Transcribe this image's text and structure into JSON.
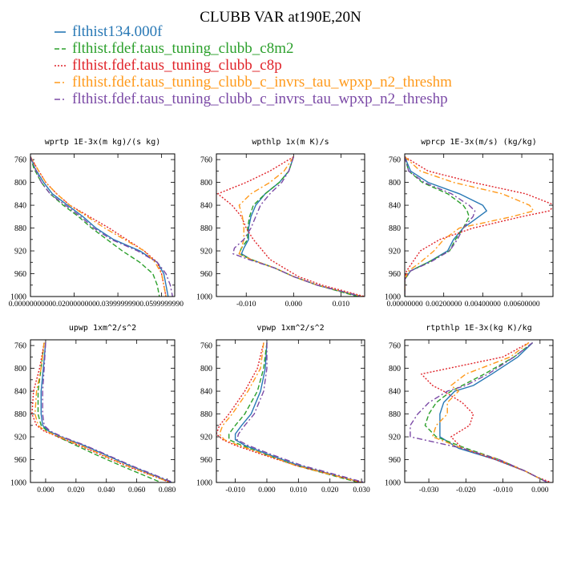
{
  "title": "CLUBB VAR at190E,20N",
  "legend": [
    {
      "label": "flthist134.000f",
      "color": "#2878b5",
      "style": "solid"
    },
    {
      "label": "flthist.fdef.taus_tuning_clubb_c8m2",
      "color": "#2ca02c",
      "style": "dashed"
    },
    {
      "label": "flthist.fdef.taus_tuning_clubb_c8p",
      "color": "#e0242a",
      "style": "dotted"
    },
    {
      "label": "flthist.fdef.taus_tuning_clubb_c_invrs_tau_wpxp_n2_threshm",
      "color": "#ff9a1c",
      "style": "dashdot"
    },
    {
      "label": "flthist.fdef.taus_tuning_clubb_c_invrs_tau_wpxp_n2_threshp",
      "color": "#7b4aa6",
      "style": "dashdot"
    }
  ],
  "chart_data": [
    {
      "type": "line",
      "title": "wprtp  1E-3x(m kg)/(s kg)",
      "ylim": [
        1000,
        750
      ],
      "xlim": [
        0,
        0.066
      ],
      "yticks": [
        "760",
        "800",
        "840",
        "880",
        "920",
        "960",
        "1000"
      ],
      "xticks": [
        {
          "v": 0,
          "label": "0.0000000000"
        },
        {
          "v": 0.02,
          "label": "0.0200000000"
        },
        {
          "v": 0.04,
          "label": "0.0399999990"
        },
        {
          "v": 0.06,
          "label": "0.0599999990"
        }
      ],
      "y": [
        755,
        775,
        800,
        820,
        840,
        860,
        880,
        900,
        920,
        940,
        960,
        980,
        1000
      ],
      "series": [
        {
          "values": [
            0,
            0.002,
            0.006,
            0.01,
            0.017,
            0.024,
            0.03,
            0.038,
            0.05,
            0.058,
            0.061,
            0.062,
            0.063
          ]
        },
        {
          "values": [
            0,
            0.0015,
            0.005,
            0.009,
            0.015,
            0.022,
            0.028,
            0.035,
            0.042,
            0.05,
            0.056,
            0.058,
            0.059
          ]
        },
        {
          "values": [
            0,
            0.003,
            0.007,
            0.012,
            0.018,
            0.027,
            0.036,
            0.044,
            0.052,
            0.058,
            0.06,
            0.061,
            0.062
          ]
        },
        {
          "values": [
            0,
            0.003,
            0.007,
            0.012,
            0.018,
            0.026,
            0.034,
            0.043,
            0.052,
            0.057,
            0.06,
            0.061,
            0.062
          ]
        },
        {
          "values": [
            0,
            0.002,
            0.005,
            0.009,
            0.016,
            0.023,
            0.029,
            0.037,
            0.049,
            0.058,
            0.062,
            0.064,
            0.065
          ]
        }
      ]
    },
    {
      "type": "line",
      "title": "wpthlp  1x(m K)/s",
      "ylim": [
        1000,
        750
      ],
      "xlim": [
        -0.0163,
        0.015
      ],
      "yticks": [
        "760",
        "800",
        "840",
        "880",
        "920",
        "960",
        "1000"
      ],
      "xticks": [
        {
          "v": -0.01,
          "label": "-0.010"
        },
        {
          "v": 0,
          "label": "0.000"
        },
        {
          "v": 0.01,
          "label": "0.010"
        }
      ],
      "y": [
        755,
        780,
        800,
        820,
        840,
        860,
        880,
        900,
        915,
        925,
        935,
        950,
        965,
        980,
        1000
      ],
      "series": [
        {
          "values": [
            0.0,
            -0.001,
            -0.003,
            -0.006,
            -0.008,
            -0.009,
            -0.0095,
            -0.0095,
            -0.0105,
            -0.011,
            -0.009,
            -0.004,
            0.0,
            0.005,
            0.014
          ]
        },
        {
          "values": [
            0.0,
            -0.001,
            -0.003,
            -0.006,
            -0.0085,
            -0.0093,
            -0.0097,
            -0.0097,
            -0.011,
            -0.0115,
            -0.009,
            -0.004,
            0.0,
            0.005,
            0.0135
          ]
        },
        {
          "values": [
            0.0,
            -0.005,
            -0.01,
            -0.016,
            -0.013,
            -0.011,
            -0.01,
            -0.0085,
            -0.007,
            -0.006,
            -0.005,
            -0.002,
            0.001,
            0.006,
            0.015
          ]
        },
        {
          "values": [
            0.0,
            -0.002,
            -0.005,
            -0.009,
            -0.0115,
            -0.0108,
            -0.0105,
            -0.0105,
            -0.011,
            -0.0115,
            -0.009,
            -0.004,
            0.0,
            0.005,
            0.0145
          ]
        },
        {
          "values": [
            0.0,
            -0.001,
            -0.0025,
            -0.005,
            -0.007,
            -0.008,
            -0.009,
            -0.0105,
            -0.0125,
            -0.0128,
            -0.0095,
            -0.004,
            0.0,
            0.005,
            0.0145
          ]
        }
      ]
    },
    {
      "type": "line",
      "title": "wprcp  1E-3x(m/s) (kg/kg)",
      "ylim": [
        1000,
        750
      ],
      "xlim": [
        0,
        0.0076
      ],
      "yticks": [
        "760",
        "800",
        "840",
        "880",
        "920",
        "960",
        "1000"
      ],
      "xticks": [
        {
          "v": 0,
          "label": "0.00000000"
        },
        {
          "v": 0.002,
          "label": "0.00200000"
        },
        {
          "v": 0.004,
          "label": "0.00400000"
        },
        {
          "v": 0.006,
          "label": "0.00600000"
        }
      ],
      "y": [
        755,
        780,
        800,
        820,
        840,
        850,
        860,
        880,
        900,
        920,
        940,
        955,
        970,
        1000
      ],
      "series": [
        {
          "values": [
            0.0,
            0.0003,
            0.0012,
            0.0028,
            0.004,
            0.0042,
            0.0038,
            0.003,
            0.0025,
            0.0022,
            0.0012,
            0.0003,
            0.0,
            0.0
          ]
        },
        {
          "values": [
            0.0,
            0.0002,
            0.0009,
            0.0022,
            0.003,
            0.0032,
            0.0033,
            0.003,
            0.0026,
            0.0023,
            0.0012,
            0.0003,
            0.0,
            0.0
          ]
        },
        {
          "values": [
            0.0,
            0.0012,
            0.0035,
            0.0062,
            0.0077,
            0.0074,
            0.006,
            0.0035,
            0.0018,
            0.0008,
            0.0004,
            0.0001,
            0.0,
            0.0
          ]
        },
        {
          "values": [
            0.0,
            0.0008,
            0.0025,
            0.005,
            0.0064,
            0.0066,
            0.0055,
            0.0028,
            0.002,
            0.0015,
            0.0008,
            0.0002,
            0.0,
            0.0
          ]
        },
        {
          "values": [
            0.0,
            0.0002,
            0.001,
            0.0024,
            0.0033,
            0.0036,
            0.0035,
            0.003,
            0.0027,
            0.0023,
            0.0013,
            0.0003,
            0.0,
            0.0
          ]
        }
      ]
    },
    {
      "type": "line",
      "title": "upwp  1xm^2/s^2",
      "ylim": [
        1000,
        750
      ],
      "xlim": [
        -0.01,
        0.085
      ],
      "yticks": [
        "760",
        "800",
        "840",
        "880",
        "920",
        "960",
        "1000"
      ],
      "xticks": [
        {
          "v": 0,
          "label": "0.000"
        },
        {
          "v": 0.02,
          "label": "0.020"
        },
        {
          "v": 0.04,
          "label": "0.040"
        },
        {
          "v": 0.06,
          "label": "0.060"
        },
        {
          "v": 0.08,
          "label": "0.080"
        }
      ],
      "y": [
        755,
        800,
        840,
        880,
        900,
        910,
        920,
        935,
        950,
        970,
        1000
      ],
      "series": [
        {
          "values": [
            0.0,
            -0.0015,
            -0.003,
            -0.003,
            -0.002,
            0.002,
            0.01,
            0.025,
            0.038,
            0.055,
            0.083
          ]
        },
        {
          "values": [
            -0.001,
            -0.003,
            -0.005,
            -0.005,
            -0.003,
            0.001,
            0.008,
            0.02,
            0.032,
            0.049,
            0.076
          ]
        },
        {
          "values": [
            -0.001,
            -0.004,
            -0.008,
            -0.009,
            -0.006,
            -0.001,
            0.008,
            0.022,
            0.035,
            0.052,
            0.082
          ]
        },
        {
          "values": [
            -0.001,
            -0.003,
            -0.006,
            -0.007,
            -0.005,
            0.0,
            0.009,
            0.023,
            0.036,
            0.053,
            0.082
          ]
        },
        {
          "values": [
            0.0,
            -0.001,
            -0.002,
            -0.002,
            -0.001,
            0.003,
            0.011,
            0.026,
            0.039,
            0.056,
            0.084
          ]
        }
      ]
    },
    {
      "type": "line",
      "title": "vpwp  1xm^2/s^2",
      "ylim": [
        1000,
        750
      ],
      "xlim": [
        -0.016,
        0.031
      ],
      "yticks": [
        "760",
        "800",
        "840",
        "880",
        "920",
        "960",
        "1000"
      ],
      "xticks": [
        {
          "v": -0.01,
          "label": "-0.010"
        },
        {
          "v": 0,
          "label": "0.000"
        },
        {
          "v": 0.01,
          "label": "0.010"
        },
        {
          "v": 0.02,
          "label": "0.020"
        },
        {
          "v": 0.03,
          "label": "0.030"
        }
      ],
      "y": [
        755,
        800,
        840,
        880,
        900,
        915,
        925,
        935,
        950,
        970,
        1000
      ],
      "series": [
        {
          "values": [
            0.0,
            -0.0005,
            -0.002,
            -0.005,
            -0.008,
            -0.01,
            -0.01,
            -0.007,
            0.0,
            0.01,
            0.03
          ]
        },
        {
          "values": [
            0.0,
            -0.001,
            -0.003,
            -0.007,
            -0.01,
            -0.012,
            -0.012,
            -0.008,
            -0.001,
            0.009,
            0.029
          ]
        },
        {
          "values": [
            -0.001,
            -0.003,
            -0.007,
            -0.012,
            -0.015,
            -0.016,
            -0.014,
            -0.01,
            -0.002,
            0.009,
            0.03
          ]
        },
        {
          "values": [
            -0.001,
            -0.002,
            -0.006,
            -0.011,
            -0.014,
            -0.015,
            -0.0135,
            -0.009,
            -0.001,
            0.009,
            0.03
          ]
        },
        {
          "values": [
            0.0,
            0.0,
            -0.001,
            -0.004,
            -0.007,
            -0.009,
            -0.0095,
            -0.006,
            0.001,
            0.011,
            0.031
          ]
        }
      ]
    },
    {
      "type": "line",
      "title": "rtpthlp  1E-3x(kg K)/kg",
      "ylim": [
        1000,
        750
      ],
      "xlim": [
        -0.0365,
        0.0035
      ],
      "yticks": [
        "760",
        "800",
        "840",
        "880",
        "920",
        "960",
        "1000"
      ],
      "xticks": [
        {
          "v": -0.03,
          "label": "-0.030"
        },
        {
          "v": -0.02,
          "label": "-0.020"
        },
        {
          "v": -0.01,
          "label": "-0.010"
        },
        {
          "v": 0,
          "label": "0.000"
        }
      ],
      "y": [
        755,
        780,
        810,
        830,
        840,
        860,
        880,
        900,
        920,
        940,
        960,
        980,
        990,
        1000
      ],
      "series": [
        {
          "values": [
            -0.002,
            -0.006,
            -0.013,
            -0.018,
            -0.023,
            -0.026,
            -0.027,
            -0.027,
            -0.027,
            -0.022,
            -0.012,
            -0.004,
            -0.001,
            0.002
          ]
        },
        {
          "values": [
            -0.002,
            -0.007,
            -0.015,
            -0.021,
            -0.024,
            -0.028,
            -0.03,
            -0.031,
            -0.028,
            -0.02,
            -0.011,
            -0.004,
            -0.001,
            0.002
          ]
        },
        {
          "values": [
            -0.003,
            -0.01,
            -0.032,
            -0.029,
            -0.026,
            -0.021,
            -0.018,
            -0.019,
            -0.024,
            -0.021,
            -0.012,
            -0.004,
            -0.001,
            0.003
          ]
        },
        {
          "values": [
            -0.003,
            -0.008,
            -0.02,
            -0.024,
            -0.022,
            -0.025,
            -0.025,
            -0.028,
            -0.029,
            -0.021,
            -0.011,
            -0.004,
            -0.001,
            0.002
          ]
        },
        {
          "values": [
            -0.002,
            -0.007,
            -0.014,
            -0.02,
            -0.025,
            -0.03,
            -0.033,
            -0.035,
            -0.035,
            -0.021,
            -0.011,
            -0.004,
            -0.001,
            0.002
          ]
        }
      ]
    }
  ]
}
